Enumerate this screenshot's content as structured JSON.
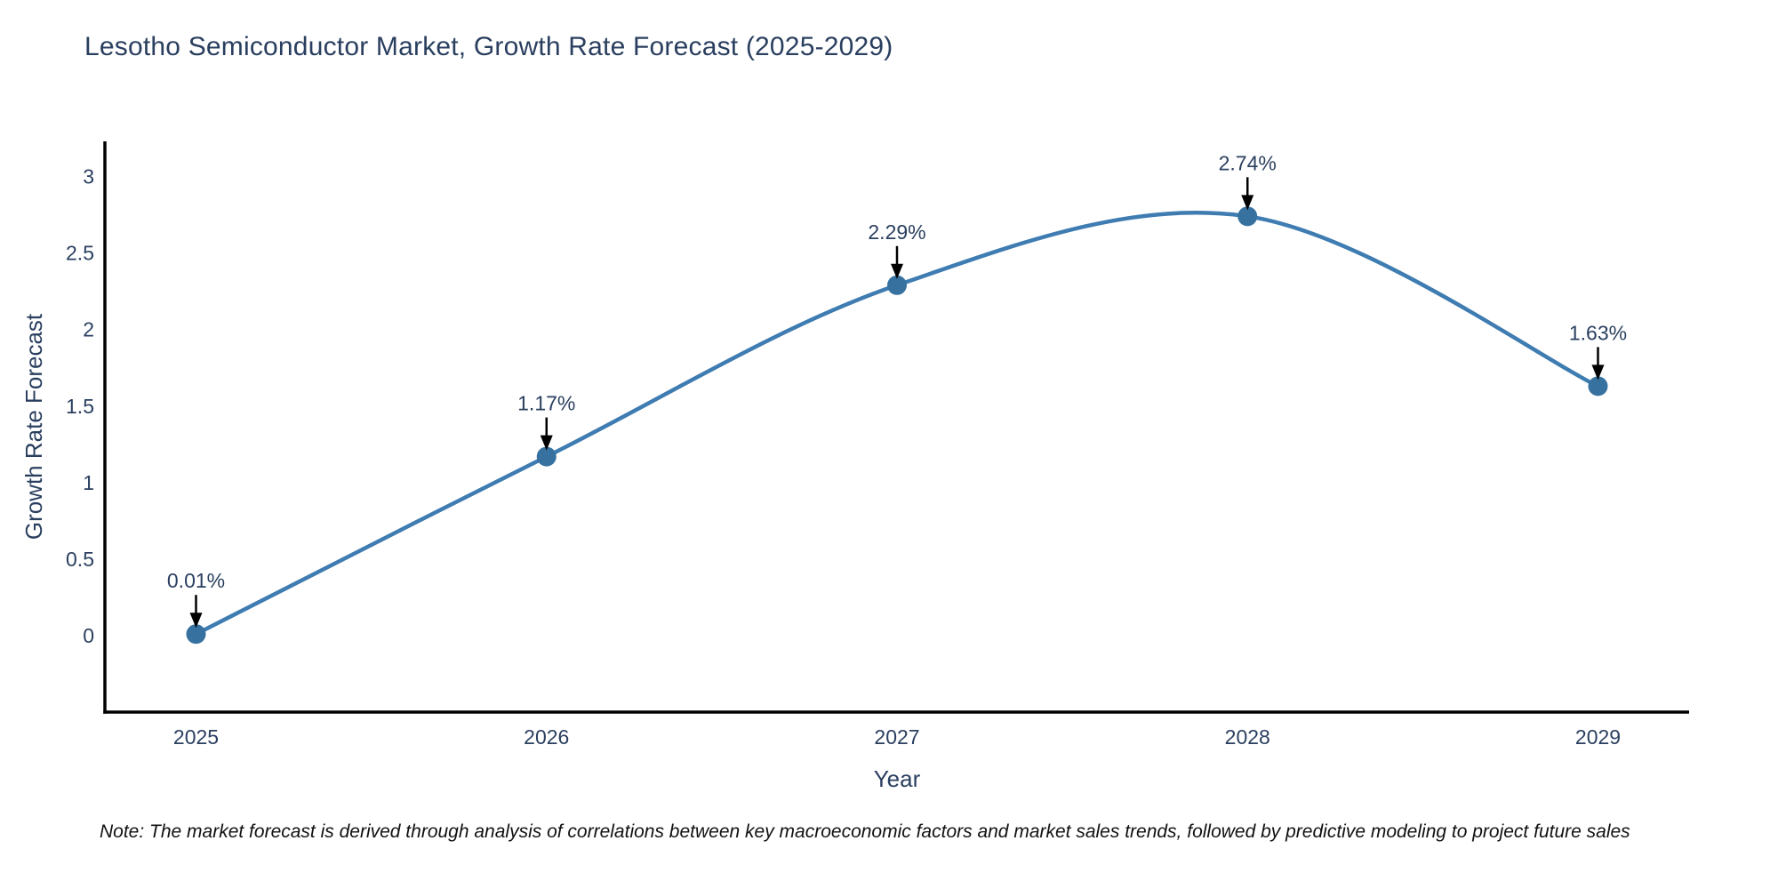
{
  "chart_data": {
    "type": "line",
    "title": "Lesotho Semiconductor Market, Growth Rate Forecast (2025-2029)",
    "xlabel": "Year",
    "ylabel": "Growth Rate Forecast",
    "x": [
      2025,
      2026,
      2027,
      2028,
      2029
    ],
    "xtick_labels": [
      "2025",
      "2026",
      "2027",
      "2028",
      "2029"
    ],
    "yticks": [
      0,
      0.5,
      1,
      1.5,
      2,
      2.5,
      3
    ],
    "ytick_labels": [
      "0",
      "0.5",
      "1",
      "1.5",
      "2",
      "2.5",
      "3"
    ],
    "series": [
      {
        "name": "Growth Rate Forecast",
        "values": [
          0.01,
          1.17,
          2.29,
          2.74,
          1.63
        ],
        "point_labels": [
          "0.01%",
          "1.17%",
          "2.29%",
          "2.74%",
          "1.63%"
        ]
      }
    ],
    "line_shape": "spline",
    "markers": true,
    "grid": false,
    "legend": false,
    "xlim": [
      2024.74,
      2029.26
    ],
    "ylim": [
      -0.5,
      3.23
    ],
    "colors": {
      "line": "#3e7cb1",
      "marker": "#36719f",
      "axis": "#000000",
      "text": "#2a3f5f",
      "annotation_arrow": "#000000"
    }
  },
  "note": {
    "text": "Note: The market forecast is derived through analysis of correlations between key macroeconomic factors and market sales trends, followed by predictive modeling to project future sales"
  }
}
